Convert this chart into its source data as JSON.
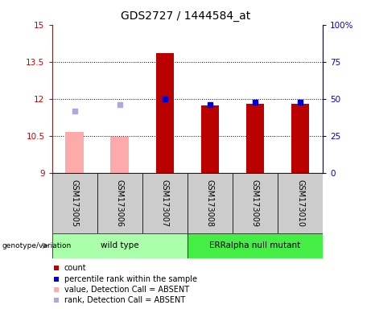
{
  "title": "GDS2727 / 1444584_at",
  "samples": [
    "GSM173005",
    "GSM173006",
    "GSM173007",
    "GSM173008",
    "GSM173009",
    "GSM173010"
  ],
  "ylim_left": [
    9,
    15
  ],
  "ylim_right": [
    0,
    100
  ],
  "yticks_left": [
    9,
    10.5,
    12,
    13.5,
    15
  ],
  "ytick_labels_left": [
    "9",
    "10.5",
    "12",
    "13.5",
    "15"
  ],
  "yticks_right": [
    0,
    25,
    50,
    75,
    100
  ],
  "ytick_labels_right": [
    "0",
    "25",
    "50",
    "75",
    "100%"
  ],
  "bar_values": [
    null,
    null,
    13.85,
    11.75,
    11.8,
    11.8
  ],
  "bar_absent_values": [
    10.65,
    10.45,
    null,
    null,
    null,
    null
  ],
  "bar_color": "#bb0000",
  "bar_absent_color": "#ffaaaa",
  "rank_values": [
    null,
    null,
    50,
    46,
    48,
    48
  ],
  "rank_absent_values": [
    42,
    46,
    null,
    null,
    null,
    null
  ],
  "rank_color": "#0000cc",
  "rank_absent_color": "#aaaadd",
  "bar_width": 0.4,
  "dotted_gridlines": [
    10.5,
    12,
    13.5
  ],
  "left_axis_color": "#cc0000",
  "right_axis_color": "#0000cc",
  "label_area_color": "#cccccc",
  "group_wt_color": "#aaffaa",
  "group_mutant_color": "#44ee44",
  "legend_items": [
    {
      "label": "count",
      "color": "#bb0000"
    },
    {
      "label": "percentile rank within the sample",
      "color": "#0000cc"
    },
    {
      "label": "value, Detection Call = ABSENT",
      "color": "#ffaaaa"
    },
    {
      "label": "rank, Detection Call = ABSENT",
      "color": "#aaaadd"
    }
  ],
  "genotype_label": "genotype/variation",
  "group_labels": [
    "wild type",
    "ERRalpha null mutant"
  ],
  "group_sample_ranges": [
    [
      0,
      3
    ],
    [
      3,
      6
    ]
  ]
}
